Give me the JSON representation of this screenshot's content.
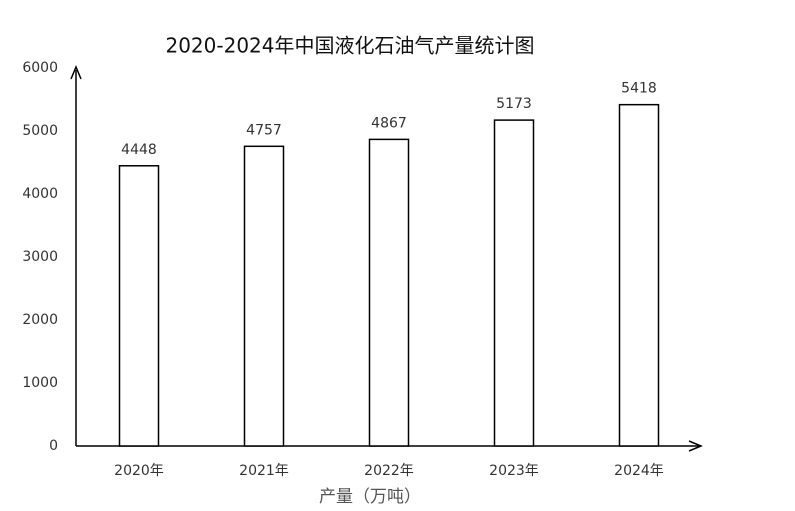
{
  "chart_data": {
    "type": "bar",
    "title": "2020-2024年中国液化石油气产量统计图",
    "x_label": "产量（万吨）",
    "categories": [
      "2020年",
      "2021年",
      "2022年",
      "2023年",
      "2024年"
    ],
    "values": [
      4448,
      4757,
      4867,
      5173,
      5418
    ],
    "color": "#ffffff",
    "ylim": [
      0,
      6000
    ],
    "yticks": [
      0,
      1000,
      2000,
      3000,
      4000,
      5000,
      6000
    ],
    "grid": false
  }
}
